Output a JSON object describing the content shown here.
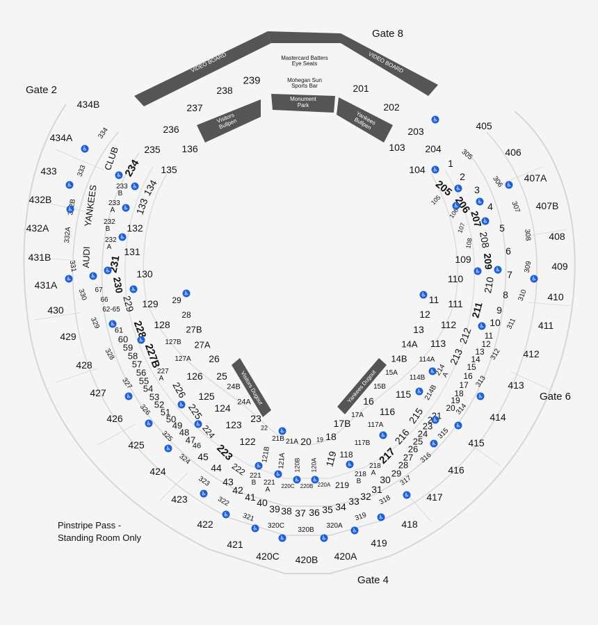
{
  "gates": {
    "g2": "Gate 2",
    "g8": "Gate 8",
    "g6": "Gate 6",
    "g4": "Gate 4"
  },
  "video_board": "VIDEO BOARD",
  "mastercard": "Mastercard Batters Eye Seats",
  "mohegan": "Mohegan Sun Sports Bar",
  "monument": "Monument Park",
  "visitors_bullpen": "Visitors Bullpen",
  "yankees_bullpen": "Yankees Bullpen",
  "visitors_dugout": "Visitors Dugout",
  "yankees_dugout": "Yankees Dugout",
  "club": "CLUB",
  "yankees": "YANKEES",
  "audi": "AUDI",
  "pinstripe_line1": "Pinstripe Pass -",
  "pinstripe_line2": "Standing Room Only",
  "accessible_icon": "wheelchair-icon",
  "sections": {
    "s434B": "434B",
    "s434A": "434A",
    "s433": "433",
    "s432B": "432B",
    "s432A": "432A",
    "s431B": "431B",
    "s431A": "431A",
    "s430": "430",
    "s429": "429",
    "s428": "428",
    "s427": "427",
    "s426": "426",
    "s425": "425",
    "s424": "424",
    "s423": "423",
    "s422": "422",
    "s421": "421",
    "s420C": "420C",
    "s420B": "420B",
    "s420A": "420A",
    "s419": "419",
    "s418": "418",
    "s417": "417",
    "s416": "416",
    "s415": "415",
    "s414": "414",
    "s413": "413",
    "s412": "412",
    "s411": "411",
    "s410": "410",
    "s409": "409",
    "s408": "408",
    "s407B": "407B",
    "s407A": "407A",
    "s406": "406",
    "s405": "405",
    "s334": "334",
    "s333": "333",
    "s332B": "332B",
    "s332A": "332A",
    "s331": "331",
    "s330": "330",
    "s329": "329",
    "s328": "328",
    "s327": "327",
    "s326": "326",
    "s325": "325",
    "s324": "324",
    "s323": "323",
    "s322": "322",
    "s321": "321",
    "s320C": "320C",
    "s320B": "320B",
    "s320A": "320A",
    "s319": "319",
    "s318": "318",
    "s317": "317",
    "s316": "316",
    "s315": "315",
    "s314": "314",
    "s313": "313",
    "s312": "312",
    "s311": "311",
    "s310": "310",
    "s309": "309",
    "s308": "308",
    "s307": "307",
    "s306": "306",
    "s305": "305",
    "s239": "239",
    "s238": "238",
    "s237": "237",
    "s236": "236",
    "s235": "235",
    "s234": "234",
    "s233B": "233 B",
    "s233A": "233 A",
    "s232B": "232 B",
    "s232A": "232 A",
    "s231": "231",
    "s230": "230",
    "s229": "229",
    "s228": "228",
    "s227B": "227B",
    "s227A": "227 A",
    "s226": "226",
    "s225": "225",
    "s224": "224",
    "s223": "223",
    "s222": "222",
    "s221B": "221 B",
    "s221A": "221 A",
    "s220C": "220C",
    "s220B": "220B",
    "s220A": "220A",
    "s219": "219",
    "s218B": "218 B",
    "s218A": "218 A",
    "s217": "217",
    "s216": "216",
    "s215": "215",
    "s214B": "214B",
    "s214A": "214 A",
    "s213": "213",
    "s212": "212",
    "s211": "211",
    "s210": "210",
    "s209": "209",
    "s208": "208",
    "s207": "207",
    "s206": "206",
    "s205": "205",
    "s204": "204",
    "s203": "203",
    "s202": "202",
    "s201": "201",
    "s136": "136",
    "s135": "135",
    "s134": "134",
    "s133": "133",
    "s132": "132",
    "s131": "131",
    "s130": "130",
    "s129": "129",
    "s128": "128",
    "s127B": "127B",
    "s127A": "127A",
    "s126": "126",
    "s125": "125",
    "s124": "124",
    "s123": "123",
    "s122": "122",
    "s121B": "121B",
    "s121A": "121A",
    "s120B": "120B",
    "s120A": "120A",
    "s119": "119",
    "s118": "118",
    "s117B": "117B",
    "s117A": "117A",
    "s116": "116",
    "s115": "115",
    "s114B": "114B",
    "s114A": "114A",
    "s113": "113",
    "s112": "112",
    "s111": "111",
    "s110": "110",
    "s109": "109",
    "s108": "108",
    "s107": "107",
    "s106": "106",
    "s105": "105",
    "s104": "104",
    "s103": "103",
    "f67": "67",
    "f66": "66",
    "f6265": "62-65",
    "f61": "61",
    "f60": "60",
    "f59": "59",
    "f58": "58",
    "f57": "57",
    "f56": "56",
    "f55": "55",
    "f54": "54",
    "f53": "53",
    "f52": "52",
    "f51": "51",
    "f50": "50",
    "f49": "49",
    "f48": "48",
    "f47": "47",
    "f46": "46",
    "f45": "45",
    "f44": "44",
    "f43": "43",
    "f42": "42",
    "f41": "41",
    "f40": "40",
    "f39": "39",
    "f38": "38",
    "f37": "37",
    "f36": "36",
    "f35": "35",
    "f34": "34",
    "f33": "33",
    "f32": "32",
    "f31": "31",
    "f30": "30",
    "f29b": "29",
    "f28b": "28",
    "f27b": "27",
    "f26b": "26",
    "f25b": "25",
    "f24b": "24",
    "f23b": "23",
    "f22b": "22",
    "f21b": "21",
    "f29": "29",
    "f28": "28",
    "f27B": "27B",
    "f27A": "27A",
    "f26": "26",
    "f25": "25",
    "f24B": "24B",
    "f24A": "24A",
    "f23": "23",
    "f22": "22",
    "f21B": "21B",
    "f21A": "21A",
    "f20": "20",
    "f19": "19",
    "f18": "18",
    "f17B": "17B",
    "f17A": "17A",
    "f16": "16",
    "f15B": "15B",
    "f15A": "15A",
    "f14B": "14B",
    "f14A": "14A",
    "f14": "14",
    "f13": "13",
    "f13b": "13",
    "f12": "12",
    "f12b": "12",
    "f11": "11",
    "f11b": "11",
    "f10": "10",
    "f9": "9",
    "f8": "8",
    "f7": "7",
    "f6": "6",
    "f5": "5",
    "f4": "4",
    "f3": "3",
    "f2": "2",
    "f1": "1",
    "f15": "15",
    "f16b": "16",
    "f17": "17",
    "f18b": "18",
    "f19b": "19",
    "f20b": "20"
  }
}
